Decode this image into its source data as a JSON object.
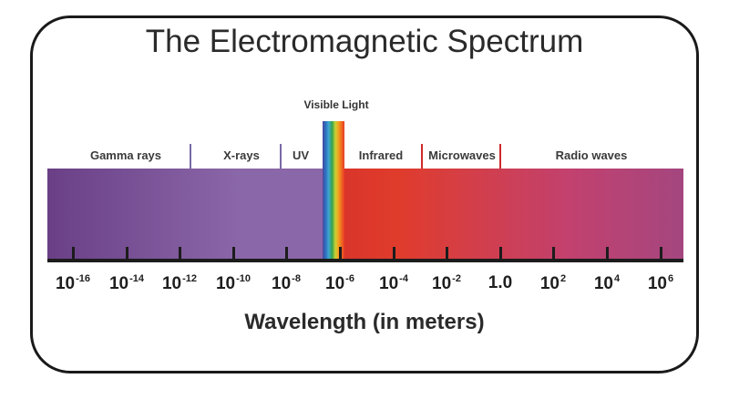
{
  "title": "The Electromagnetic Spectrum",
  "regions": [
    {
      "name": "gamma",
      "label": "Gamma rays"
    },
    {
      "name": "xray",
      "label": "X-rays"
    },
    {
      "name": "uv",
      "label": "UV"
    },
    {
      "name": "visible",
      "label": "Visible Light"
    },
    {
      "name": "infrared",
      "label": "Infrared"
    },
    {
      "name": "microwave",
      "label": "Microwaves"
    },
    {
      "name": "radio",
      "label": "Radio waves"
    }
  ],
  "colors": {
    "violet_region": "#8a67a8",
    "gamma_dark": "#6a3f86",
    "infrared_red": "#d9342a",
    "radio_magenta": "#a4467f",
    "divider_violet": "#7a6aa8",
    "divider_red": "#d0282c"
  },
  "axis": {
    "title": "Wavelength (in meters)",
    "ticks": [
      {
        "base": "10",
        "exp": "-16"
      },
      {
        "base": "10",
        "exp": "-14"
      },
      {
        "base": "10",
        "exp": "-12"
      },
      {
        "base": "10",
        "exp": "-10"
      },
      {
        "base": "10",
        "exp": "-8"
      },
      {
        "base": "10",
        "exp": "-6"
      },
      {
        "base": "10",
        "exp": "-4"
      },
      {
        "base": "10",
        "exp": "-2"
      },
      {
        "base": "1.0",
        "exp": ""
      },
      {
        "base": "10",
        "exp": "2"
      },
      {
        "base": "10",
        "exp": "4"
      },
      {
        "base": "10",
        "exp": "6"
      }
    ]
  }
}
